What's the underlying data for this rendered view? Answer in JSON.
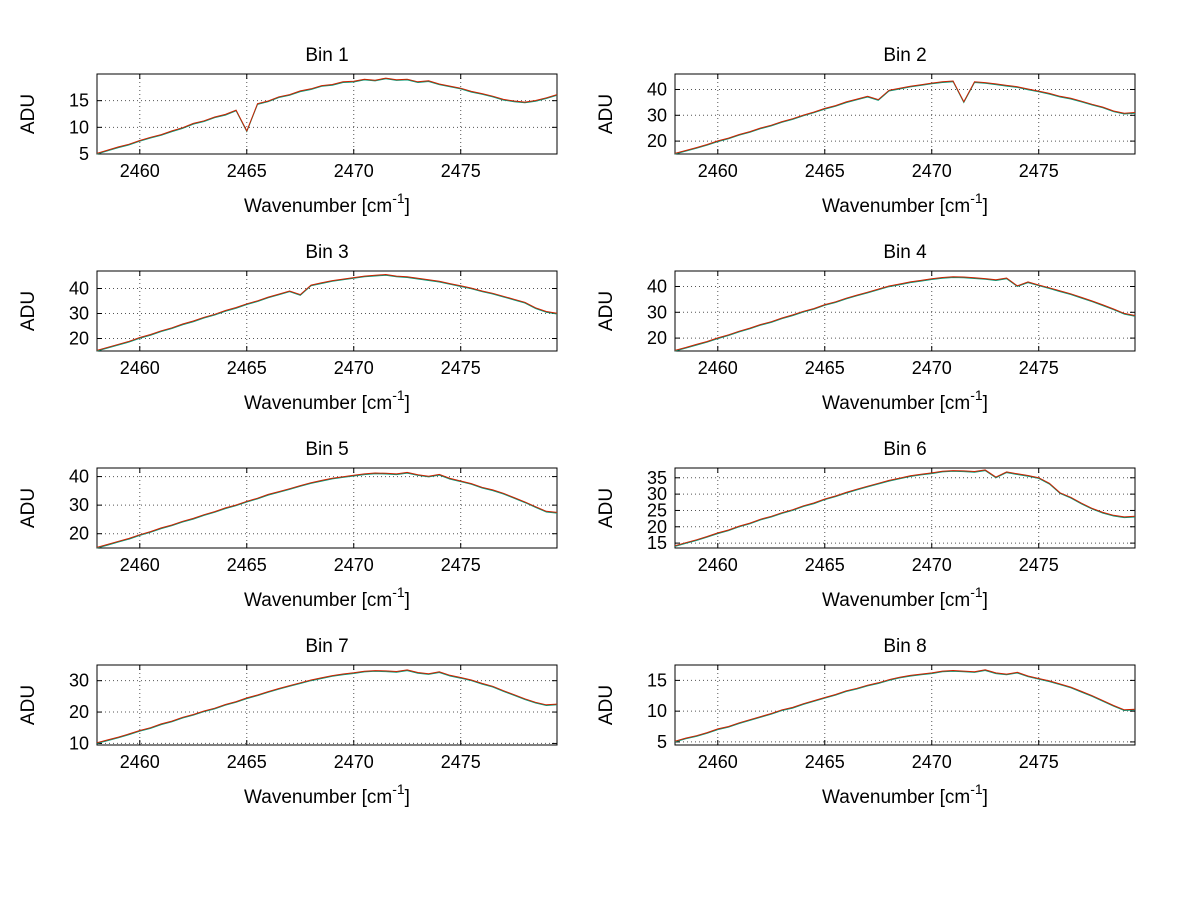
{
  "figure": {
    "background": "#ffffff"
  },
  "axes": {
    "ylabel": "ADU",
    "xlabel_prefix": "Wavenumber [cm",
    "xlabel_sup": "-1",
    "xlabel_suffix": "]",
    "xlim": [
      2458,
      2479.5
    ],
    "xticks": [
      2460,
      2465,
      2470,
      2475
    ],
    "grid_color": "#555555",
    "axis_color": "#000000",
    "trace_colors": [
      "#009977",
      "#cc2200"
    ]
  },
  "chart_data": [
    {
      "type": "line",
      "title": "Bin 1",
      "ylim": [
        5,
        20
      ],
      "yticks": [
        5,
        10,
        15
      ],
      "x_start": 2458,
      "x_step": 0.5,
      "values": [
        5.0,
        5.6,
        6.2,
        6.7,
        7.4,
        8.0,
        8.5,
        9.2,
        9.8,
        10.6,
        11.1,
        11.8,
        12.3,
        13.1,
        9.2,
        14.3,
        14.8,
        15.6,
        16.0,
        16.7,
        17.1,
        17.7,
        17.9,
        18.4,
        18.5,
        18.9,
        18.7,
        19.1,
        18.8,
        18.9,
        18.4,
        18.6,
        18.0,
        17.6,
        17.2,
        16.6,
        16.2,
        15.7,
        15.1,
        14.8,
        14.6,
        14.9,
        15.4,
        16.0
      ]
    },
    {
      "type": "line",
      "title": "Bin 2",
      "ylim": [
        15,
        46
      ],
      "yticks": [
        20,
        30,
        40
      ],
      "x_start": 2458,
      "x_step": 0.5,
      "values": [
        15.0,
        16.1,
        17.2,
        18.4,
        19.8,
        20.9,
        22.3,
        23.4,
        24.8,
        25.9,
        27.3,
        28.4,
        29.8,
        31.0,
        32.4,
        33.5,
        34.9,
        36.0,
        37.1,
        35.8,
        39.4,
        40.2,
        41.0,
        41.6,
        42.2,
        42.7,
        43.0,
        35.0,
        42.7,
        42.4,
        41.9,
        41.3,
        40.8,
        39.9,
        39.1,
        38.2,
        37.1,
        36.3,
        35.2,
        34.0,
        32.9,
        31.4,
        30.5,
        30.8
      ]
    },
    {
      "type": "line",
      "title": "Bin 3",
      "ylim": [
        15,
        47
      ],
      "yticks": [
        20,
        30,
        40
      ],
      "x_start": 2458,
      "x_step": 0.5,
      "values": [
        15.0,
        16.2,
        17.4,
        18.6,
        20.1,
        21.3,
        22.8,
        24.0,
        25.5,
        26.7,
        28.2,
        29.4,
        30.9,
        32.1,
        33.6,
        34.8,
        36.3,
        37.5,
        38.7,
        37.3,
        41.1,
        42.0,
        42.9,
        43.5,
        44.1,
        44.7,
        45.0,
        45.3,
        44.7,
        44.4,
        43.8,
        43.2,
        42.6,
        41.7,
        40.8,
        39.9,
        38.7,
        37.8,
        36.6,
        35.4,
        34.2,
        32.0,
        30.5,
        29.8
      ]
    },
    {
      "type": "line",
      "title": "Bin 4",
      "ylim": [
        15,
        46
      ],
      "yticks": [
        20,
        30,
        40
      ],
      "x_start": 2458,
      "x_step": 0.5,
      "values": [
        15.0,
        16.1,
        17.3,
        18.4,
        19.8,
        21.0,
        22.4,
        23.6,
        25.0,
        26.1,
        27.5,
        28.7,
        30.1,
        31.2,
        32.7,
        33.8,
        35.2,
        36.4,
        37.5,
        38.7,
        39.9,
        40.7,
        41.5,
        42.1,
        42.7,
        43.2,
        43.5,
        43.4,
        43.1,
        42.8,
        42.3,
        43.0,
        40.0,
        41.5,
        40.3,
        39.2,
        38.0,
        36.9,
        35.5,
        34.1,
        32.6,
        31.0,
        29.3,
        28.5
      ]
    },
    {
      "type": "line",
      "title": "Bin 5",
      "ylim": [
        15,
        43
      ],
      "yticks": [
        20,
        30,
        40
      ],
      "x_start": 2458,
      "x_step": 0.5,
      "values": [
        15.0,
        16.0,
        17.1,
        18.1,
        19.4,
        20.5,
        21.8,
        22.8,
        24.1,
        25.1,
        26.4,
        27.5,
        28.8,
        29.8,
        31.1,
        32.2,
        33.5,
        34.5,
        35.5,
        36.6,
        37.6,
        38.4,
        39.2,
        39.7,
        40.2,
        40.7,
        41.0,
        40.9,
        40.7,
        41.2,
        40.4,
        39.9,
        40.5,
        39.1,
        38.2,
        37.3,
        36.0,
        35.1,
        33.9,
        32.4,
        30.9,
        29.2,
        27.6,
        27.2
      ]
    },
    {
      "type": "line",
      "title": "Bin 6",
      "ylim": [
        13.5,
        38
      ],
      "yticks": [
        15,
        20,
        25,
        30,
        35
      ],
      "x_start": 2458,
      "x_step": 0.5,
      "values": [
        14.0,
        14.9,
        15.8,
        16.8,
        17.9,
        18.8,
        20.0,
        20.9,
        22.1,
        23.0,
        24.1,
        25.0,
        26.2,
        27.1,
        28.3,
        29.2,
        30.3,
        31.3,
        32.2,
        33.1,
        34.0,
        34.7,
        35.4,
        35.9,
        36.3,
        36.8,
        37.0,
        36.9,
        36.7,
        37.2,
        35.0,
        36.6,
        36.0,
        35.5,
        34.8,
        33.1,
        30.2,
        28.8,
        27.0,
        25.4,
        24.2,
        23.3,
        22.8,
        23.0
      ]
    },
    {
      "type": "line",
      "title": "Bin 7",
      "ylim": [
        9.5,
        35
      ],
      "yticks": [
        10,
        20,
        30
      ],
      "x_start": 2458,
      "x_step": 0.5,
      "values": [
        10.0,
        10.9,
        11.8,
        12.8,
        13.9,
        14.8,
        16.0,
        16.9,
        18.1,
        19.0,
        20.1,
        21.0,
        22.2,
        23.1,
        24.3,
        25.2,
        26.3,
        27.3,
        28.2,
        29.1,
        30.0,
        30.7,
        31.4,
        31.9,
        32.3,
        32.8,
        33.0,
        32.9,
        32.7,
        33.2,
        32.4,
        32.0,
        32.6,
        31.5,
        30.8,
        30.0,
        28.9,
        28.0,
        26.6,
        25.3,
        24.0,
        22.9,
        22.1,
        22.3
      ]
    },
    {
      "type": "line",
      "title": "Bin 8",
      "ylim": [
        4.5,
        17.5
      ],
      "yticks": [
        5,
        10,
        15
      ],
      "x_start": 2458,
      "x_step": 0.5,
      "values": [
        5.0,
        5.5,
        5.9,
        6.4,
        7.0,
        7.4,
        8.0,
        8.5,
        9.0,
        9.5,
        10.1,
        10.5,
        11.1,
        11.6,
        12.1,
        12.6,
        13.2,
        13.6,
        14.1,
        14.5,
        15.0,
        15.4,
        15.7,
        15.9,
        16.1,
        16.4,
        16.5,
        16.4,
        16.3,
        16.6,
        16.1,
        15.9,
        16.2,
        15.6,
        15.2,
        14.8,
        14.3,
        13.8,
        13.1,
        12.4,
        11.6,
        10.8,
        10.1,
        10.2
      ]
    }
  ]
}
